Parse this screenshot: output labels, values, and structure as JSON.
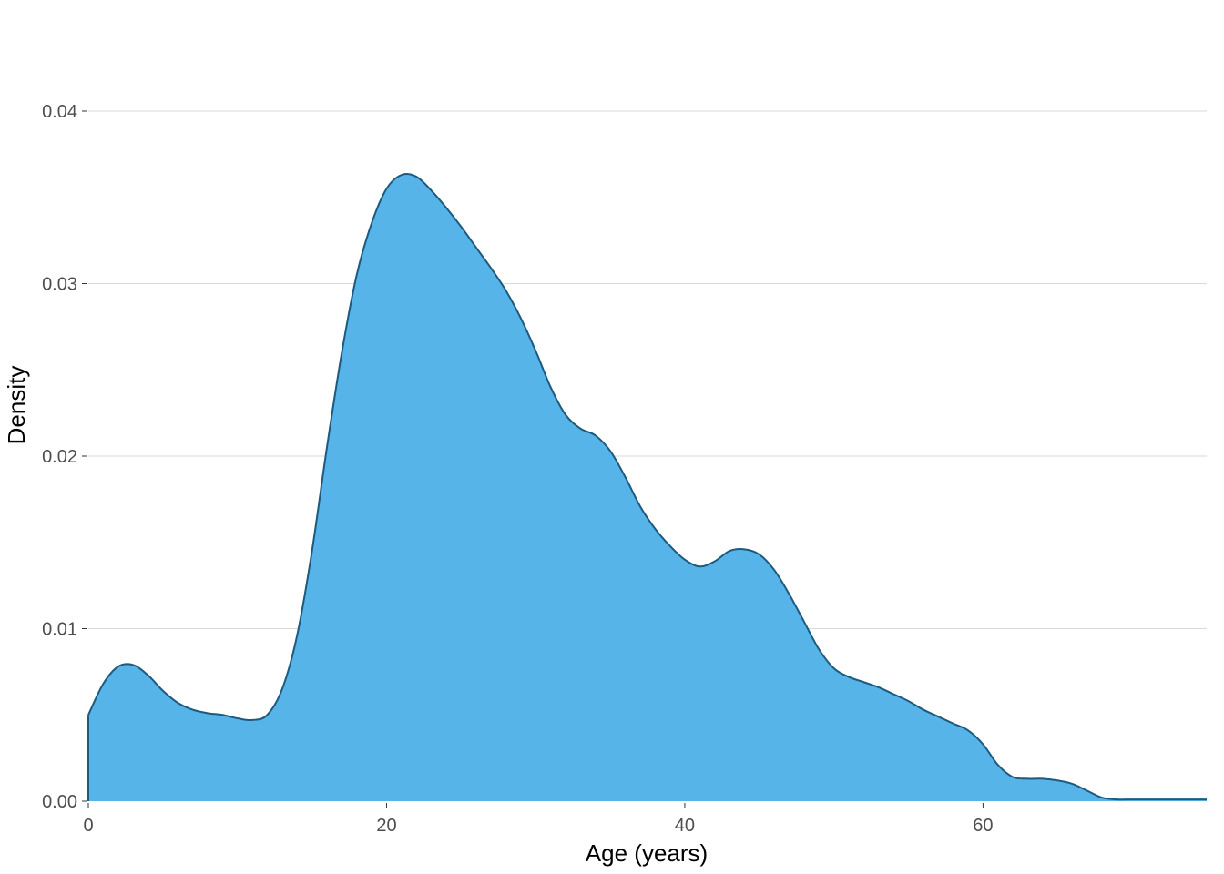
{
  "chart_data": {
    "type": "area",
    "title": "",
    "xlabel": "Age (years)",
    "ylabel": "Density",
    "xlim": [
      0,
      75
    ],
    "ylim": [
      0,
      0.04
    ],
    "x_ticks": [
      "0",
      "20",
      "40",
      "60"
    ],
    "x_tick_values": [
      0,
      20,
      40,
      60
    ],
    "y_ticks": [
      "0.00",
      "0.01",
      "0.02",
      "0.03",
      "0.04"
    ],
    "y_tick_values": [
      0,
      0.01,
      0.02,
      0.03,
      0.04
    ],
    "grid": "horizontal",
    "colors": {
      "fill": "#56B4E9",
      "line": "#1D5A7E",
      "grid": "#D9D9D9"
    },
    "series": [
      {
        "x": [
          0,
          1,
          2,
          3,
          4,
          5,
          6,
          7,
          8,
          9,
          10,
          11,
          12,
          13,
          14,
          15,
          16,
          17,
          18,
          19,
          20,
          21,
          22,
          23,
          24,
          25,
          26,
          27,
          28,
          29,
          30,
          31,
          32,
          33,
          34,
          35,
          36,
          37,
          38,
          39,
          40,
          41,
          42,
          43,
          44,
          45,
          46,
          47,
          48,
          49,
          50,
          51,
          52,
          53,
          54,
          55,
          56,
          57,
          58,
          59,
          60,
          61,
          62,
          63,
          64,
          65,
          66,
          67,
          68,
          69,
          70,
          71,
          72,
          73,
          74,
          75
        ],
        "y": [
          0.005,
          0.0068,
          0.0078,
          0.0079,
          0.0073,
          0.0064,
          0.0057,
          0.0053,
          0.0051,
          0.005,
          0.0048,
          0.0047,
          0.005,
          0.0065,
          0.0096,
          0.0145,
          0.0205,
          0.026,
          0.0305,
          0.0335,
          0.0355,
          0.0363,
          0.0362,
          0.0354,
          0.0344,
          0.0333,
          0.0321,
          0.0309,
          0.0296,
          0.028,
          0.0261,
          0.024,
          0.0224,
          0.0216,
          0.0212,
          0.0203,
          0.0188,
          0.0171,
          0.0158,
          0.0148,
          0.014,
          0.0136,
          0.0139,
          0.0145,
          0.0146,
          0.0143,
          0.0134,
          0.012,
          0.0104,
          0.0088,
          0.0077,
          0.0072,
          0.0069,
          0.0066,
          0.0062,
          0.0058,
          0.0053,
          0.0049,
          0.0045,
          0.0041,
          0.0033,
          0.0021,
          0.0014,
          0.0013,
          0.0013,
          0.0012,
          0.001,
          0.0006,
          0.0002,
          0.0001,
          0.0001,
          0.0001,
          0.0001,
          0.0001,
          0.0001,
          0.0001
        ]
      }
    ]
  }
}
